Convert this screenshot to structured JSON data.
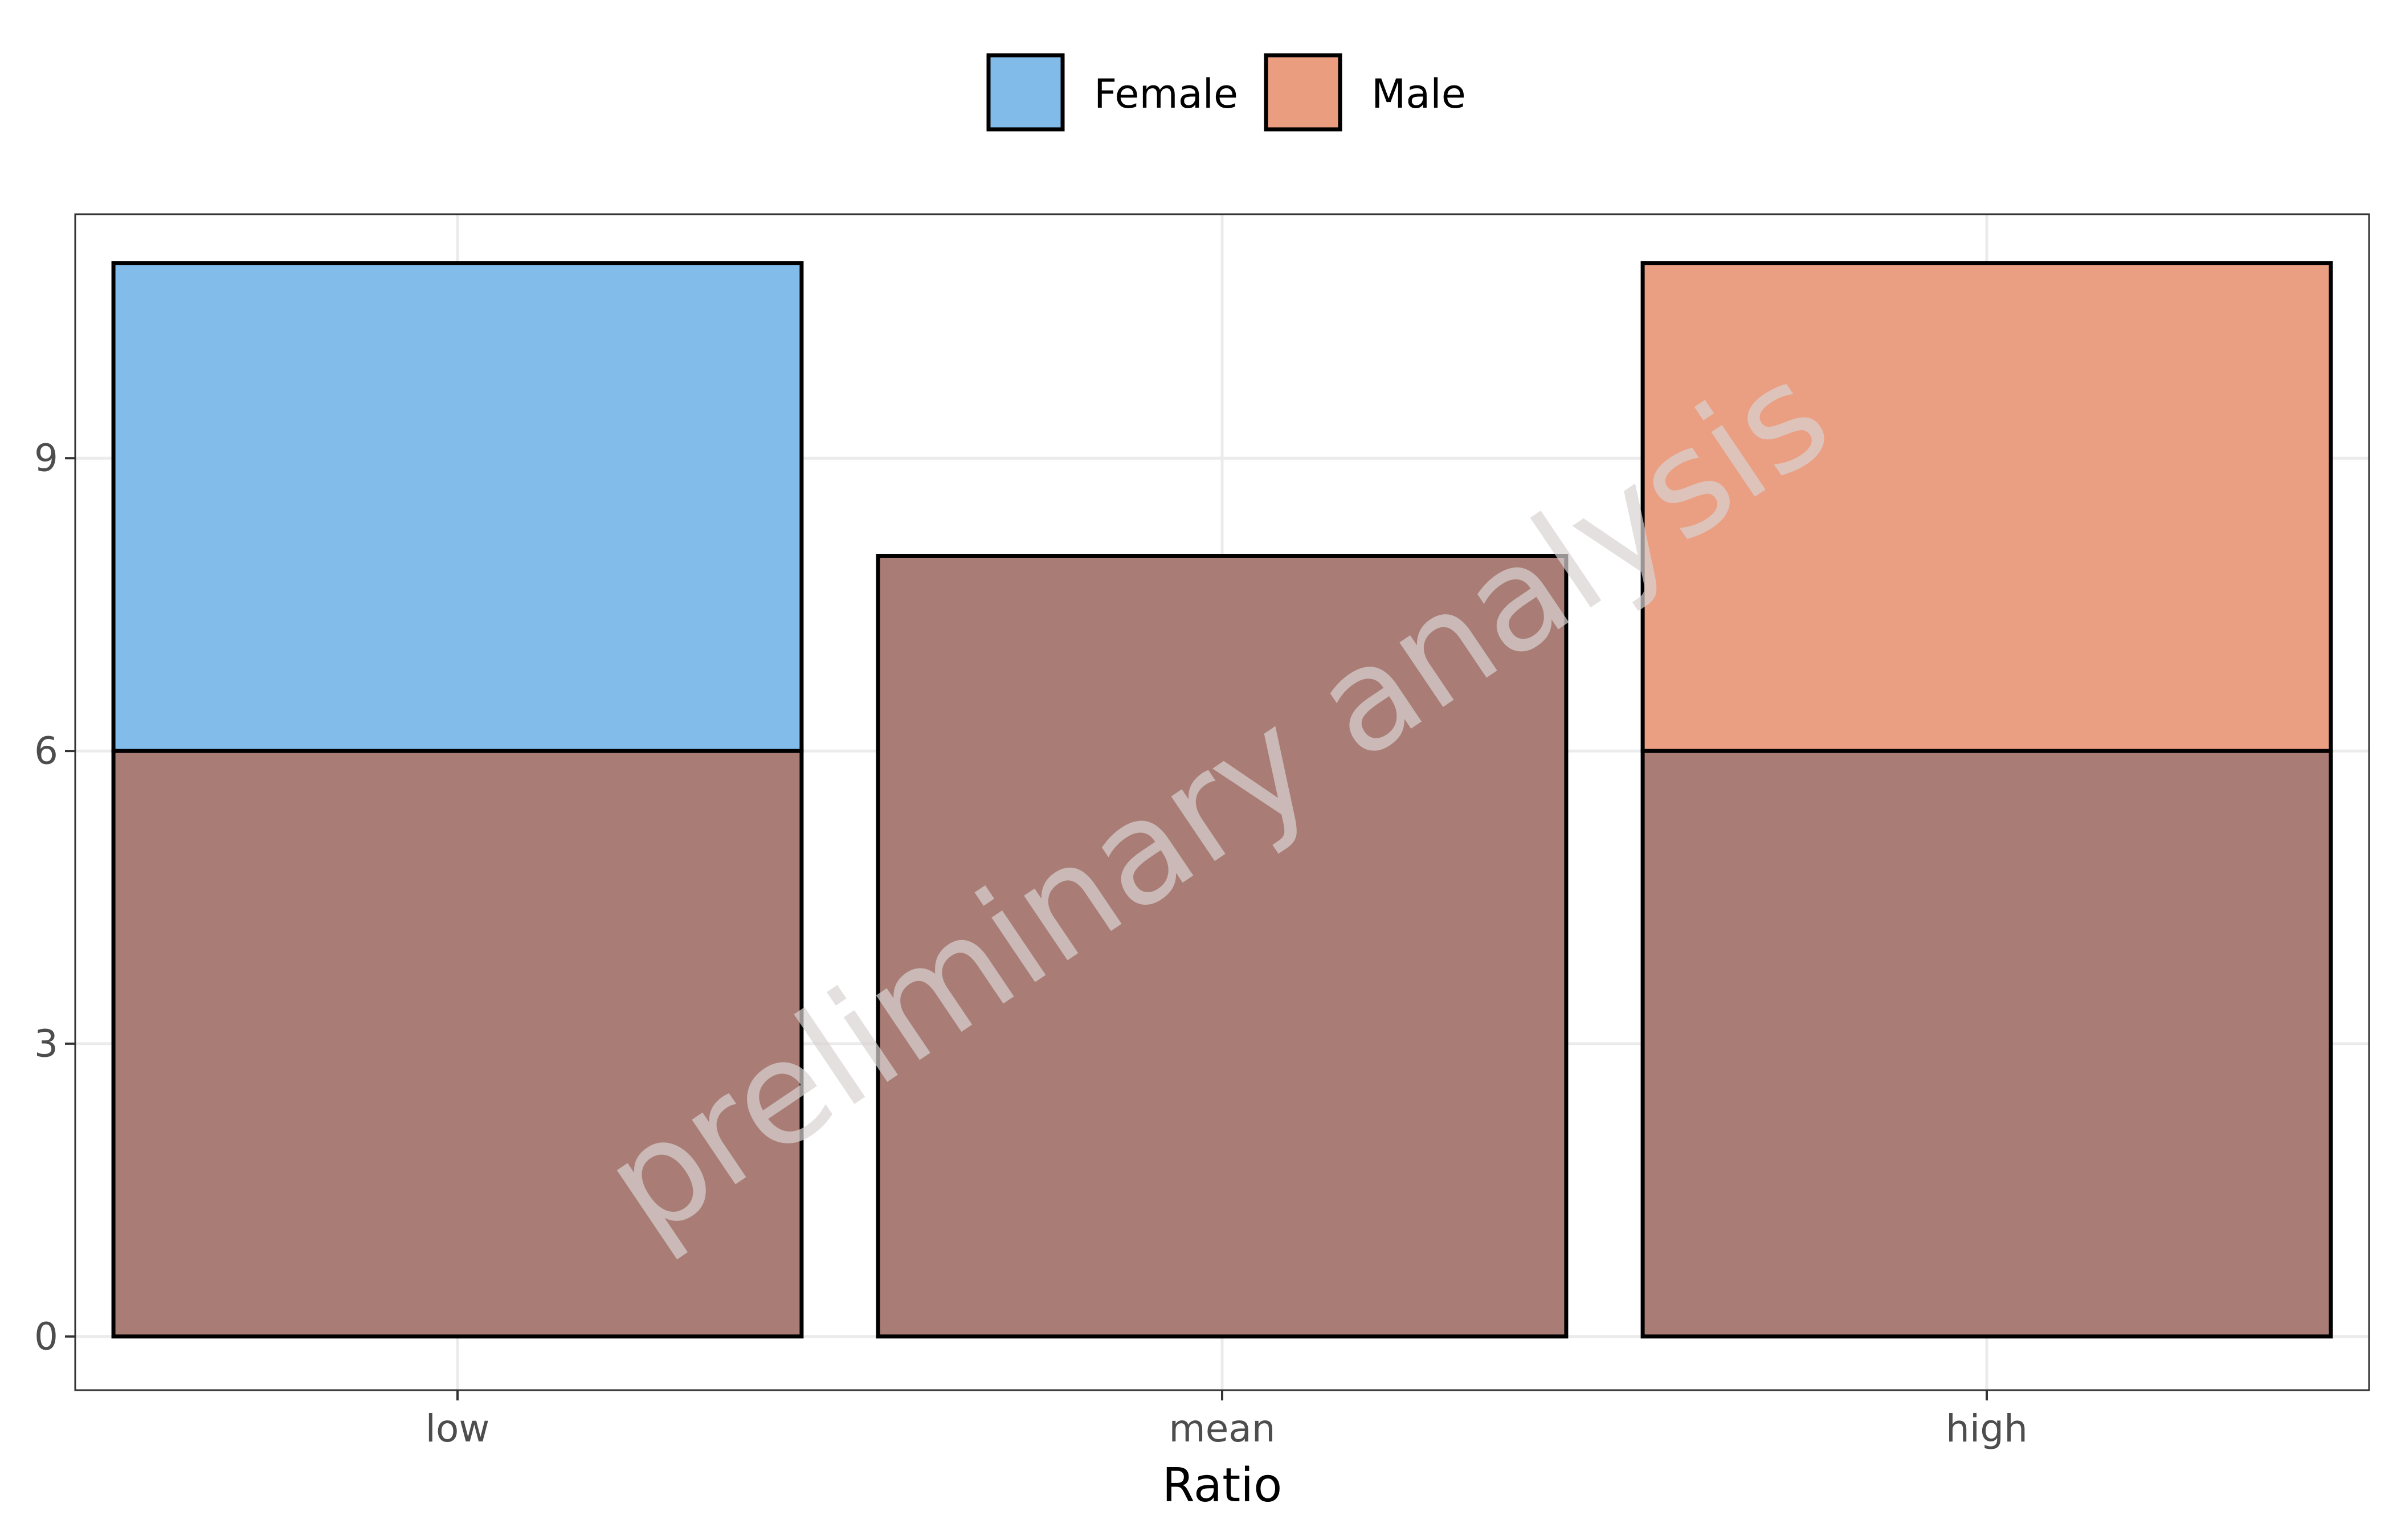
{
  "chart_data": {
    "type": "bar",
    "categories": [
      "low",
      "mean",
      "high"
    ],
    "series": [
      {
        "name": "Female",
        "color": "#80bbea",
        "values": [
          11,
          8,
          6
        ]
      },
      {
        "name": "Male",
        "color": "#eb9d7f",
        "values": [
          6,
          8,
          11
        ]
      }
    ],
    "overlap_color": "#a97d75",
    "xlabel": "Ratio",
    "ylabel": "",
    "ylim": [
      -0.55,
      11.5
    ],
    "yticks": [
      0,
      3,
      6,
      9
    ],
    "grid": true,
    "legend_position": "top",
    "bar_style": "overlaid, semi-transparent, black outline"
  },
  "watermark": "preliminary analysis"
}
